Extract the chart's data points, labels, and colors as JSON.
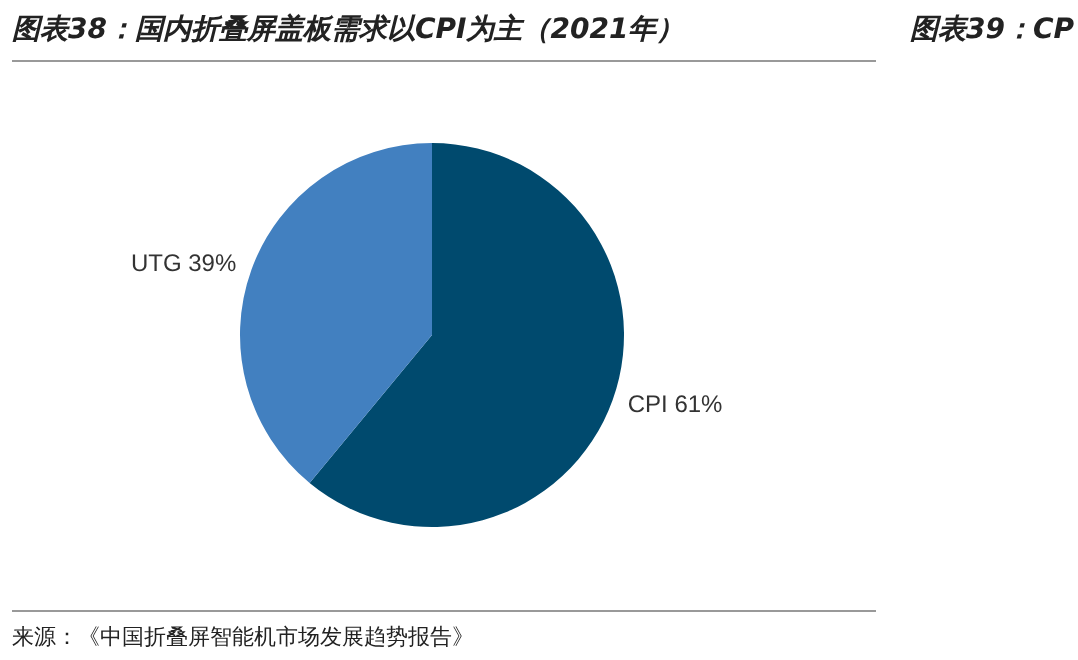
{
  "chart_data": {
    "type": "pie",
    "title": "图表38：国内折叠屏盖板需求以CPI为主（2021年）",
    "categories": [
      "CPI",
      "UTG"
    ],
    "values": [
      61,
      39
    ],
    "colors": [
      "#004a6e",
      "#4280c0"
    ],
    "value_labels": [
      "61%",
      "39%"
    ],
    "legend": false,
    "annotations": [
      "来源：《中国折叠屏智能机市场发展趋势报告》",
      "图表39：CP"
    ]
  }
}
